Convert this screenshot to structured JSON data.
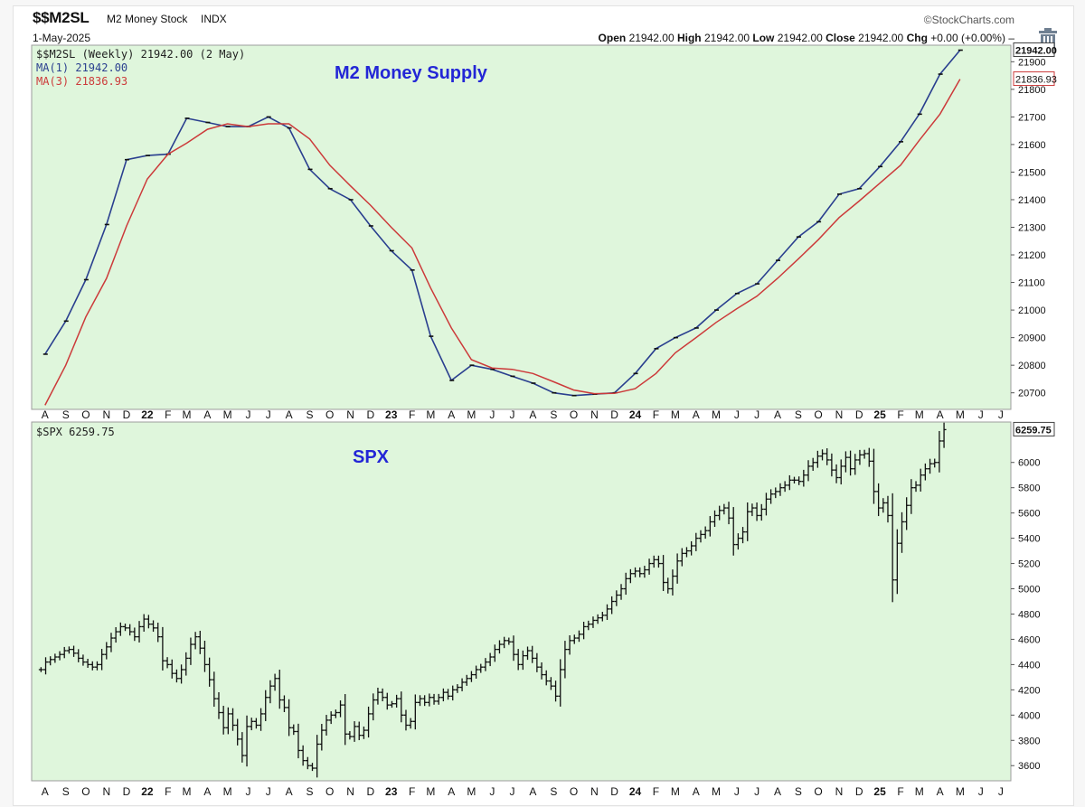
{
  "header": {
    "symbol": "$$M2SL",
    "name": "M2 Money Stock",
    "exchange": "INDX",
    "date": "1-May-2025",
    "brand": "©StockCharts.com",
    "ohlc": {
      "open_label": "Open",
      "open": "21942.00",
      "high_label": "High",
      "high": "21942.00",
      "low_label": "Low",
      "low": "21942.00",
      "close_label": "Close",
      "close": "21942.00",
      "chg_label": "Chg",
      "chg": "+0.00 (+0.00%)"
    }
  },
  "colors": {
    "plot_bg": "#dff6dc",
    "ma1": "#2a3f8f",
    "ma3": "#cc3a3a",
    "bars": "#111111",
    "title": "#2326d6"
  },
  "chart_data": [
    {
      "type": "line",
      "title": "M2 Money Supply",
      "legend_main": "$$M2SL (Weekly) 21942.00 (2 May)",
      "legend_placement": "top-left",
      "grid": false,
      "ylim": [
        20640,
        21960
      ],
      "yticks": [
        20700,
        20800,
        20900,
        21000,
        21100,
        21200,
        21300,
        21400,
        21500,
        21600,
        21700,
        21800,
        21900
      ],
      "last_value_label": "21942.00",
      "ma_value_label": "21836.93",
      "x": [
        "2021-08-01",
        "2021-09-01",
        "2021-10-01",
        "2021-11-01",
        "2021-12-01",
        "2022-01-01",
        "2022-02-01",
        "2022-03-01",
        "2022-04-01",
        "2022-05-01",
        "2022-06-01",
        "2022-07-01",
        "2022-08-01",
        "2022-09-01",
        "2022-10-01",
        "2022-11-01",
        "2022-12-01",
        "2023-01-01",
        "2023-02-01",
        "2023-03-01",
        "2023-04-01",
        "2023-05-01",
        "2023-06-01",
        "2023-07-01",
        "2023-08-01",
        "2023-09-01",
        "2023-10-01",
        "2023-11-01",
        "2023-12-01",
        "2024-01-01",
        "2024-02-01",
        "2024-03-01",
        "2024-04-01",
        "2024-05-01",
        "2024-06-01",
        "2024-07-01",
        "2024-08-01",
        "2024-09-01",
        "2024-10-01",
        "2024-11-01",
        "2024-12-01",
        "2025-01-01",
        "2025-02-01",
        "2025-03-01",
        "2025-04-01",
        "2025-05-01"
      ],
      "series": [
        {
          "name": "MA(1) 21942.00",
          "color": "#2a3f8f",
          "values": [
            20840,
            20960,
            21110,
            21310,
            21545,
            21560,
            21565,
            21695,
            21680,
            21665,
            21665,
            21700,
            21660,
            21510,
            21440,
            21400,
            21305,
            21215,
            21145,
            20905,
            20745,
            20800,
            20785,
            20760,
            20735,
            20700,
            20690,
            20695,
            20700,
            20770,
            20860,
            20900,
            20935,
            21000,
            21060,
            21095,
            21180,
            21265,
            21320,
            21420,
            21440,
            21520,
            21610,
            21710,
            21855,
            21942
          ]
        },
        {
          "name": "MA(3) 21836.93",
          "color": "#cc3a3a",
          "values": [
            20655,
            20800,
            20975,
            21115,
            21305,
            21475,
            21565,
            21605,
            21655,
            21675,
            21665,
            21675,
            21675,
            21620,
            21525,
            21450,
            21380,
            21300,
            21225,
            21080,
            20935,
            20820,
            20790,
            20785,
            20770,
            20740,
            20710,
            20697,
            20698,
            20715,
            20770,
            20845,
            20900,
            20955,
            21005,
            21050,
            21115,
            21185,
            21255,
            21335,
            21395,
            21460,
            21525,
            21615,
            21710,
            21837
          ]
        }
      ]
    },
    {
      "type": "ohlc",
      "title": "SPX",
      "legend_main": "$SPX 6259.75",
      "legend_placement": "top-left",
      "grid": false,
      "ylim": [
        3480,
        6320
      ],
      "yticks": [
        3600,
        3800,
        4000,
        4200,
        4400,
        4600,
        4800,
        5000,
        5200,
        5400,
        5600,
        5800,
        6000
      ],
      "last_value_label": "6259.75",
      "x_start": "2021-07-26",
      "x_interval": "weekly",
      "closes": [
        4360,
        4420,
        4440,
        4460,
        4480,
        4510,
        4520,
        4490,
        4450,
        4420,
        4400,
        4380,
        4400,
        4480,
        4540,
        4610,
        4660,
        4700,
        4690,
        4660,
        4620,
        4700,
        4760,
        4720,
        4690,
        4620,
        4430,
        4400,
        4330,
        4290,
        4360,
        4450,
        4560,
        4620,
        4530,
        4400,
        4280,
        4130,
        4020,
        3900,
        4010,
        3920,
        3810,
        3680,
        3910,
        3950,
        3920,
        4010,
        4140,
        4230,
        4290,
        4120,
        4060,
        3900,
        3870,
        3720,
        3640,
        3600,
        3580,
        3770,
        3880,
        3960,
        4000,
        4020,
        4080,
        3850,
        3830,
        3910,
        3840,
        3880,
        4010,
        4120,
        4180,
        4140,
        4080,
        4090,
        4130,
        4000,
        3920,
        3950,
        4100,
        4130,
        4100,
        4140,
        4110,
        4140,
        4180,
        4150,
        4200,
        4220,
        4260,
        4290,
        4320,
        4360,
        4380,
        4420,
        4460,
        4520,
        4560,
        4590,
        4580,
        4480,
        4400,
        4470,
        4510,
        4450,
        4380,
        4320,
        4270,
        4230,
        4150,
        4360,
        4520,
        4590,
        4610,
        4640,
        4700,
        4720,
        4750,
        4770,
        4790,
        4840,
        4900,
        4950,
        5000,
        5080,
        5120,
        5140,
        5120,
        5150,
        5200,
        5230,
        5200,
        5050,
        5000,
        5100,
        5220,
        5280,
        5300,
        5340,
        5400,
        5430,
        5460,
        5530,
        5580,
        5620,
        5640,
        5560,
        5350,
        5400,
        5450,
        5610,
        5640,
        5580,
        5630,
        5710,
        5750,
        5770,
        5800,
        5820,
        5860,
        5860,
        5850,
        5900,
        5970,
        6000,
        6050,
        6070,
        6020,
        5940,
        5880,
        5970,
        6040,
        5950,
        6020,
        6060,
        6070,
        6010,
        5770,
        5640,
        5680,
        5580,
        5070,
        5360,
        5530,
        5660,
        5800,
        5820,
        5900,
        5950,
        5990,
        6000,
        6170,
        6259.75
      ]
    }
  ],
  "x_axis_labels": [
    "A",
    "S",
    "O",
    "N",
    "D",
    "22",
    "F",
    "M",
    "A",
    "M",
    "J",
    "J",
    "A",
    "S",
    "O",
    "N",
    "D",
    "23",
    "F",
    "M",
    "A",
    "M",
    "J",
    "J",
    "A",
    "S",
    "O",
    "N",
    "D",
    "24",
    "F",
    "M",
    "A",
    "M",
    "J",
    "J",
    "A",
    "S",
    "O",
    "N",
    "D",
    "25",
    "F",
    "M",
    "A",
    "M",
    "J",
    "J"
  ]
}
